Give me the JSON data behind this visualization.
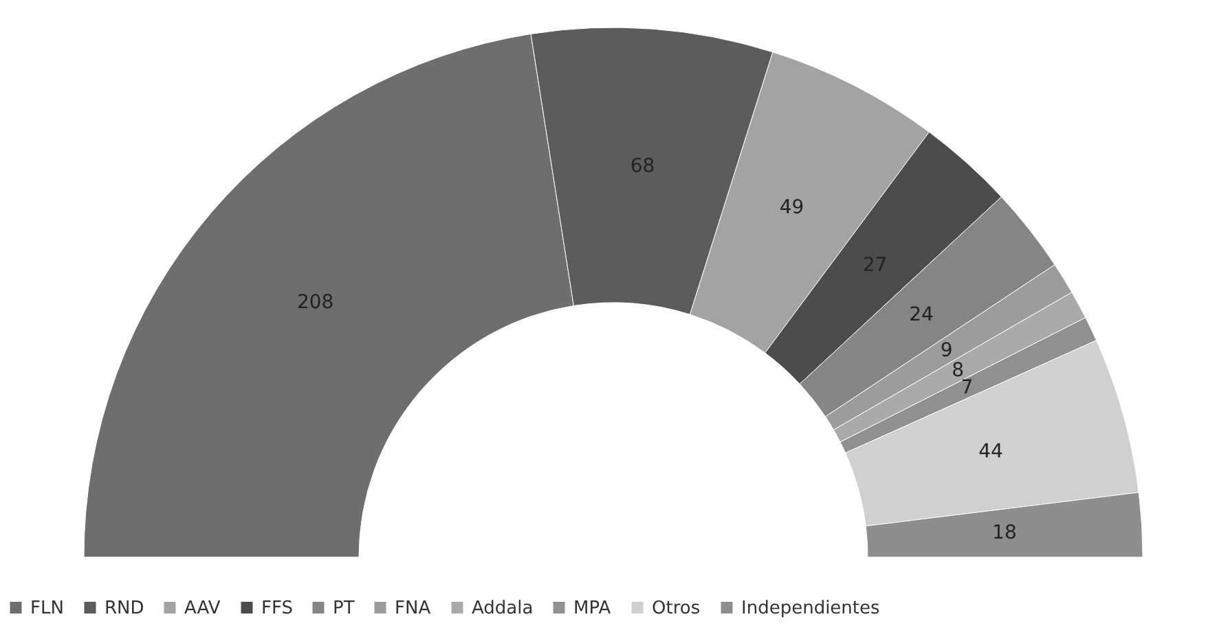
{
  "chart_data": {
    "type": "donut",
    "categories": [
      "FLN",
      "RND",
      "AAV",
      "FFS",
      "PT",
      "FNA",
      "Addala",
      "MPA",
      "Otros",
      "Independientes"
    ],
    "values": [
      208,
      68,
      49,
      27,
      24,
      9,
      8,
      7,
      44,
      18
    ],
    "colors": [
      "#6e6e6e",
      "#5c5c5c",
      "#a3a3a3",
      "#4c4c4c",
      "#858585",
      "#9c9c9c",
      "#aaaaaa",
      "#909090",
      "#d0d0d0",
      "#8e8e8e"
    ],
    "data_labels": true,
    "legend": "bottom"
  }
}
